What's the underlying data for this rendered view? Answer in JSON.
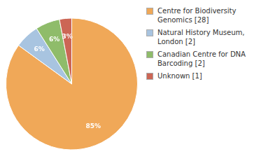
{
  "chart_data": {
    "type": "pie",
    "categories": [
      "Centre for Biodiversity\nGenomics [28]",
      "Natural History Museum, London [2]",
      "Canadian Centre for DNA\nBarcoding [2]",
      "Unknown [1]"
    ],
    "values": [
      85,
      6,
      6,
      3
    ],
    "value_labels": [
      "85%",
      "6%",
      "6%",
      "3%"
    ],
    "data_labels": true,
    "colors": [
      "#f0a858",
      "#a8c4e0",
      "#8fbc6a",
      "#cc6655"
    ],
    "legend": "right"
  }
}
